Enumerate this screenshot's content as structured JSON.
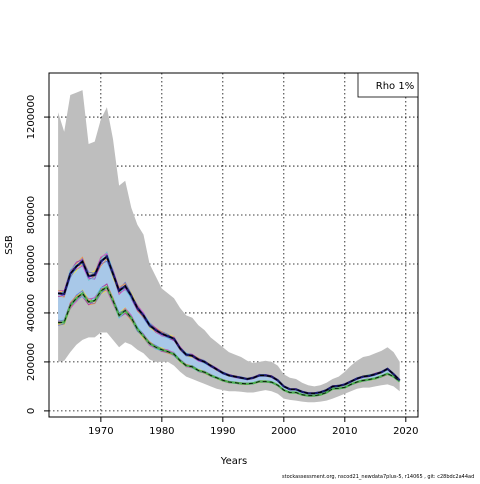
{
  "chart_data": {
    "type": "line",
    "xlabel": "Years",
    "ylabel": "SSB",
    "xlim": [
      1961.5,
      2022
    ],
    "ylim": [
      -25000,
      1380000
    ],
    "xticks": [
      1970,
      1980,
      1990,
      2000,
      2010,
      2020
    ],
    "yticks": [
      0,
      200000,
      400000,
      600000,
      800000,
      1000000,
      1200000
    ],
    "ytick_labels": [
      "0",
      "200000",
      "400000",
      "600000",
      "800000",
      "",
      "1200000"
    ],
    "grid": "dotted",
    "legend": {
      "text": "Rho 1%",
      "placement": "top-right"
    },
    "colors": {
      "band_outer": "#bebebe",
      "band_inner": "#a8c8e8",
      "dark_line": "#1a1a6e",
      "green_line": "#4caf50",
      "peel_colors": [
        "#e6194b",
        "#3cb44b",
        "#ffe119",
        "#4363d8",
        "#f58231",
        "#911eb4",
        "#46f0f0",
        "#f032e6"
      ]
    },
    "x": [
      1963,
      1964,
      1965,
      1966,
      1967,
      1968,
      1969,
      1970,
      1971,
      1972,
      1973,
      1974,
      1975,
      1976,
      1977,
      1978,
      1979,
      1980,
      1981,
      1982,
      1983,
      1984,
      1985,
      1986,
      1987,
      1988,
      1989,
      1990,
      1991,
      1992,
      1993,
      1994,
      1995,
      1996,
      1997,
      1998,
      1999,
      2000,
      2001,
      2002,
      2003,
      2004,
      2005,
      2006,
      2007,
      2008,
      2009,
      2010,
      2011,
      2012,
      2013,
      2014,
      2015,
      2016,
      2017,
      2018,
      2019
    ],
    "outer_band": {
      "upper": [
        1220000,
        1140000,
        1290000,
        1300000,
        1310000,
        1090000,
        1100000,
        1190000,
        1240000,
        1110000,
        920000,
        940000,
        830000,
        760000,
        720000,
        600000,
        550000,
        500000,
        480000,
        460000,
        420000,
        390000,
        380000,
        350000,
        330000,
        300000,
        280000,
        260000,
        240000,
        230000,
        220000,
        205000,
        195000,
        200000,
        205000,
        200000,
        185000,
        150000,
        135000,
        130000,
        115000,
        105000,
        100000,
        105000,
        115000,
        130000,
        140000,
        160000,
        185000,
        205000,
        220000,
        225000,
        235000,
        245000,
        260000,
        240000,
        200000
      ],
      "lower": [
        200000,
        205000,
        240000,
        270000,
        290000,
        300000,
        300000,
        320000,
        320000,
        290000,
        260000,
        280000,
        270000,
        250000,
        235000,
        210000,
        200000,
        200000,
        200000,
        185000,
        160000,
        140000,
        130000,
        120000,
        110000,
        100000,
        90000,
        85000,
        80000,
        80000,
        78000,
        75000,
        75000,
        80000,
        85000,
        80000,
        70000,
        50000,
        45000,
        42000,
        38000,
        35000,
        35000,
        38000,
        42000,
        50000,
        60000,
        70000,
        80000,
        90000,
        95000,
        95000,
        100000,
        105000,
        108000,
        100000,
        80000
      ]
    },
    "series": [
      {
        "name": "",
        "values": [
          480000,
          478000,
          560000,
          590000,
          610000,
          550000,
          555000,
          610000,
          630000,
          560000,
          490000,
          510000,
          470000,
          420000,
          390000,
          350000,
          330000,
          315000,
          305000,
          295000,
          255000,
          230000,
          225000,
          210000,
          200000,
          185000,
          170000,
          155000,
          145000,
          140000,
          135000,
          130000,
          135000,
          145000,
          145000,
          140000,
          125000,
          100000,
          88000,
          88000,
          78000,
          72000,
          72000,
          76000,
          85000,
          100000,
          102000,
          108000,
          120000,
          132000,
          140000,
          143000,
          150000,
          158000,
          172000,
          150000,
          125000
        ]
      },
      {
        "name": "",
        "values": [
          360000,
          362000,
          430000,
          460000,
          480000,
          445000,
          450000,
          490000,
          505000,
          450000,
          390000,
          410000,
          380000,
          335000,
          305000,
          275000,
          260000,
          250000,
          242000,
          232000,
          205000,
          185000,
          180000,
          165000,
          158000,
          145000,
          135000,
          125000,
          118000,
          115000,
          112000,
          110000,
          113000,
          120000,
          120000,
          117000,
          105000,
          85000,
          75000,
          75000,
          66000,
          62000,
          62000,
          66000,
          75000,
          90000,
          92000,
          96000,
          108000,
          118000,
          124000,
          128000,
          133000,
          142000,
          152000,
          140000,
          120000
        ]
      }
    ]
  },
  "footer_text": "stockassessment.org, nscod21_newdata7plus-5, r14065 , git: c28bdc2a44ad"
}
